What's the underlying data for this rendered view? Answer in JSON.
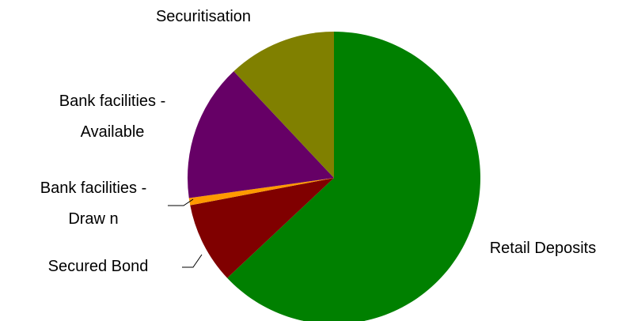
{
  "chart_data": {
    "type": "pie",
    "title": "",
    "start_angle_deg": 0,
    "direction": "clockwise",
    "legend": "none",
    "slices": [
      {
        "label": "Retail Deposits",
        "label_lines": [
          "Retail Deposits"
        ],
        "value": 63.0,
        "color": "#008000"
      },
      {
        "label": "Secured Bond",
        "label_lines": [
          "Secured Bond"
        ],
        "value": 9.0,
        "color": "#800000"
      },
      {
        "label": "Bank facilities - Drawn",
        "label_lines": [
          "Bank facilities -",
          "Draw n"
        ],
        "value": 0.8,
        "color": "#FF9900"
      },
      {
        "label": "Bank facilities - Available",
        "label_lines": [
          "Bank facilities -",
          "Available"
        ],
        "value": 15.2,
        "color": "#660066"
      },
      {
        "label": "Securitisation",
        "label_lines": [
          "Securitisation"
        ],
        "value": 12.0,
        "color": "#808000"
      }
    ]
  }
}
